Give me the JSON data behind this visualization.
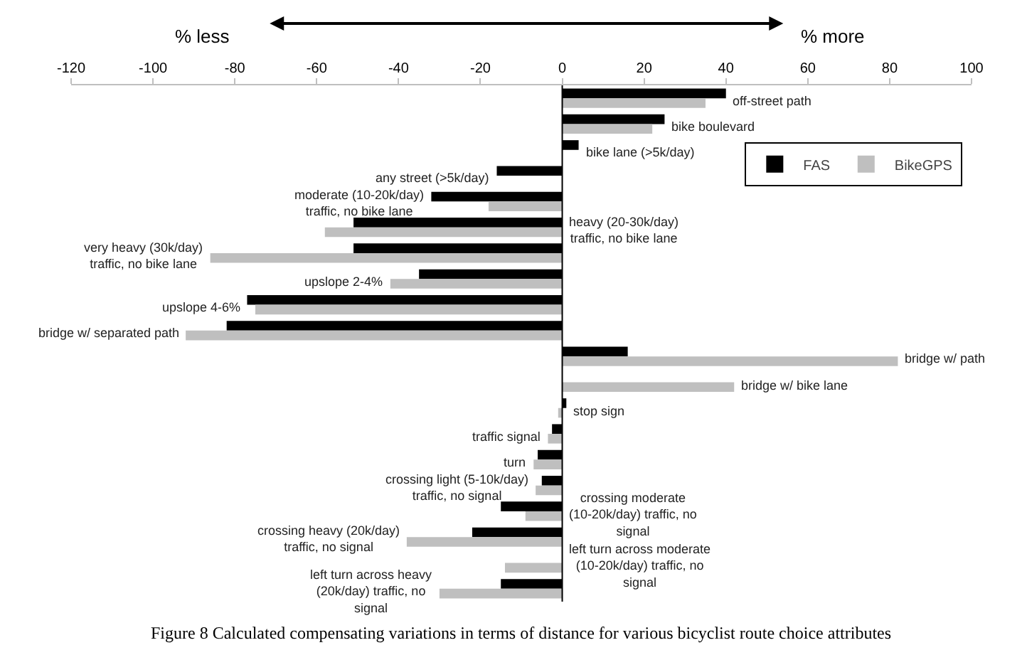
{
  "chart_data": {
    "type": "bar",
    "orientation": "horizontal",
    "annotations": [
      "% less",
      "% more",
      "Figure 8 Calculated compensating variations in terms of distance for various bicyclist route choice attributes"
    ],
    "categories": [
      "off-street path",
      "bike boulevard",
      "bike lane (>5k/day)",
      "any street (>5k/day)",
      "moderate (10-20k/day) traffic, no bike lane",
      "heavy (20-30k/day) traffic, no bike lane",
      "very heavy (30k/day) traffic, no bike lane",
      "upslope 2-4%",
      "upslope 4-6%",
      "bridge w/ separated path",
      "bridge w/ path",
      "bridge w/ bike lane",
      "stop sign",
      "traffic signal",
      "turn",
      "crossing light (5-10k/day) traffic, no signal",
      "crossing moderate (10-20k/day) traffic, no signal",
      "crossing heavy (20k/day) traffic, no signal",
      "left turn across moderate (10-20k/day) traffic, no signal",
      "left turn across heavy (20k/day) traffic, no signal"
    ],
    "series": [
      {
        "name": "FAS",
        "color": "#000000",
        "values": [
          40,
          25,
          4,
          -16,
          -32,
          -51,
          -51,
          -35,
          -77,
          -82,
          16,
          null,
          1,
          -2.5,
          -6,
          -5,
          -15,
          -22,
          null,
          -15
        ]
      },
      {
        "name": "BikeGPS",
        "color": "#bfbfbf",
        "values": [
          35,
          22,
          null,
          null,
          -18,
          -58,
          -86,
          -42,
          -75,
          -92,
          82,
          42,
          -1,
          -3.5,
          -7,
          -6.5,
          -9,
          -38,
          -14,
          -30
        ]
      }
    ],
    "xlim": [
      -120,
      100
    ],
    "xticks": [
      -120,
      -100,
      -80,
      -60,
      -40,
      -20,
      0,
      20,
      40,
      60,
      80,
      100
    ],
    "tick_labels": "x",
    "grid": false,
    "legend": "top right"
  }
}
